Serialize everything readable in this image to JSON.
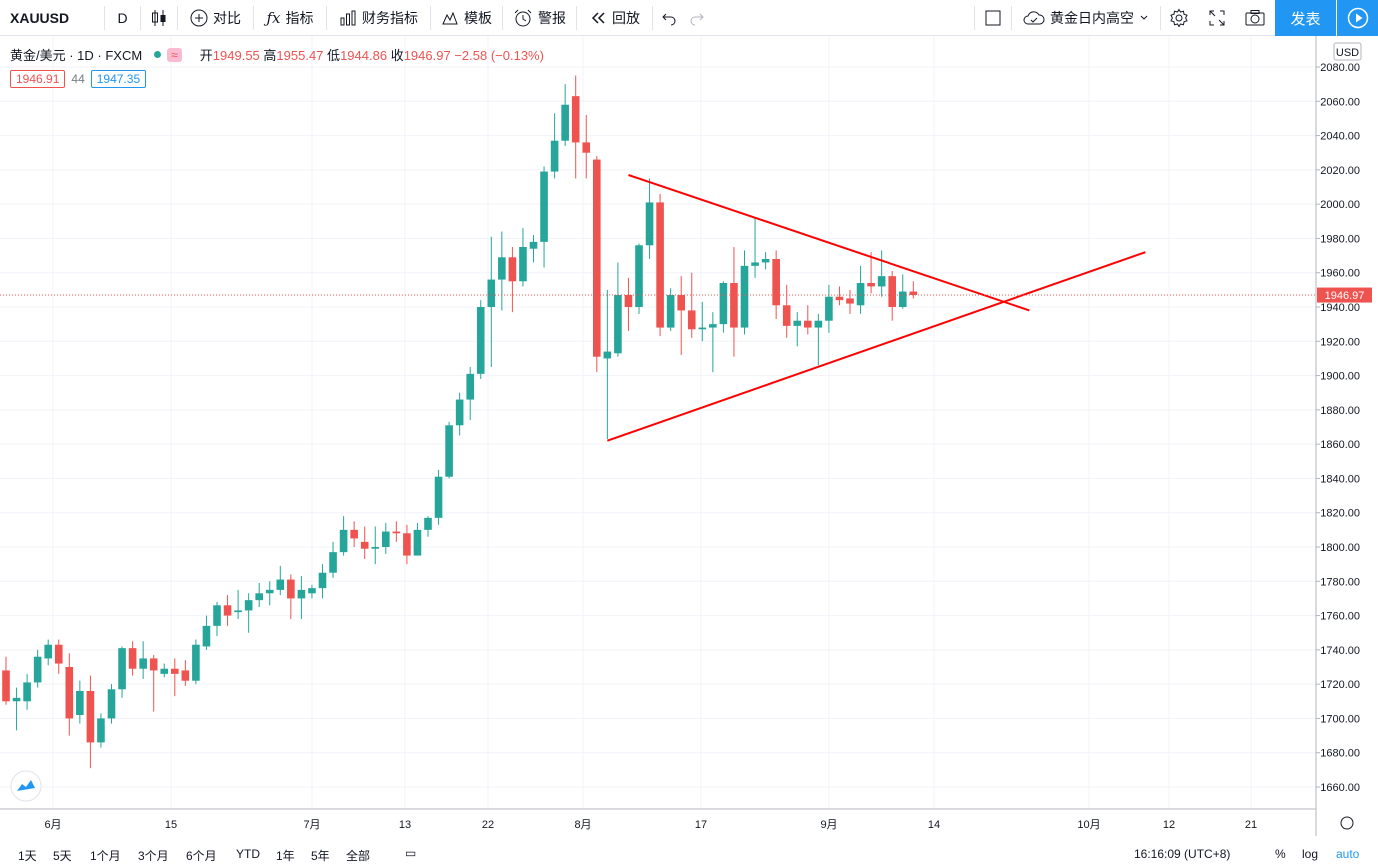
{
  "toolbar": {
    "symbol": "XAUUSD",
    "interval": "D",
    "compare": "对比",
    "indicators": "指标",
    "financials": "财务指标",
    "templates": "模板",
    "alert": "警报",
    "replay": "回放",
    "layout_name": "黄金日内高空",
    "publish": "发表"
  },
  "legend": {
    "title": "黄金/美元 · 1D · FXCM",
    "open_label": "开",
    "open": "1949.55",
    "high_label": "高",
    "high": "1955.47",
    "low_label": "低",
    "low": "1944.86",
    "close_label": "收",
    "close": "1946.97",
    "change": "−2.58 (−0.13%)",
    "bid": "1946.91",
    "spread": "44",
    "ask": "1947.35"
  },
  "price_axis": {
    "currency": "USD",
    "current_price": "1946.97",
    "ticks": [
      "2080.00",
      "2060.00",
      "2040.00",
      "2020.00",
      "2000.00",
      "1980.00",
      "1960.00",
      "1940.00",
      "1920.00",
      "1900.00",
      "1880.00",
      "1860.00",
      "1840.00",
      "1820.00",
      "1800.00",
      "1780.00",
      "1760.00",
      "1740.00",
      "1720.00",
      "1700.00",
      "1680.00",
      "1660.00"
    ]
  },
  "time_axis": {
    "labels": [
      "6月",
      "15",
      "7月",
      "13",
      "22",
      "8月",
      "17",
      "9月",
      "14",
      "10月",
      "12",
      "21"
    ]
  },
  "bottom": {
    "ranges": [
      "1天",
      "5天",
      "1个月",
      "3个月",
      "6个月",
      "YTD",
      "1年",
      "5年",
      "全部"
    ],
    "clock": "16:16:09 (UTC+8)",
    "percent": "%",
    "log": "log",
    "auto": "auto"
  },
  "colors": {
    "up": "#26a69a",
    "down": "#ef5350",
    "accent": "#2196f3",
    "drawing": "#ff0000"
  },
  "chart_data": {
    "type": "candlestick",
    "symbol": "XAUUSD",
    "interval": "1D",
    "ylim": [
      1650,
      2090
    ],
    "candles": [
      {
        "o": 1728,
        "h": 1736,
        "l": 1708,
        "c": 1710
      },
      {
        "o": 1710,
        "h": 1718,
        "l": 1693,
        "c": 1712
      },
      {
        "o": 1710,
        "h": 1726,
        "l": 1705,
        "c": 1721
      },
      {
        "o": 1721,
        "h": 1740,
        "l": 1718,
        "c": 1736
      },
      {
        "o": 1735,
        "h": 1746,
        "l": 1731,
        "c": 1743
      },
      {
        "o": 1743,
        "h": 1746,
        "l": 1726,
        "c": 1732
      },
      {
        "o": 1730,
        "h": 1738,
        "l": 1690,
        "c": 1700
      },
      {
        "o": 1702,
        "h": 1722,
        "l": 1697,
        "c": 1716
      },
      {
        "o": 1716,
        "h": 1725,
        "l": 1671,
        "c": 1686
      },
      {
        "o": 1686,
        "h": 1703,
        "l": 1683,
        "c": 1700
      },
      {
        "o": 1700,
        "h": 1720,
        "l": 1697,
        "c": 1717
      },
      {
        "o": 1717,
        "h": 1742,
        "l": 1712,
        "c": 1741
      },
      {
        "o": 1741,
        "h": 1745,
        "l": 1725,
        "c": 1729
      },
      {
        "o": 1729,
        "h": 1745,
        "l": 1723,
        "c": 1735
      },
      {
        "o": 1735,
        "h": 1737,
        "l": 1704,
        "c": 1728
      },
      {
        "o": 1726,
        "h": 1732,
        "l": 1724,
        "c": 1729
      },
      {
        "o": 1729,
        "h": 1735,
        "l": 1713,
        "c": 1726
      },
      {
        "o": 1728,
        "h": 1734,
        "l": 1719,
        "c": 1722
      },
      {
        "o": 1722,
        "h": 1746,
        "l": 1720,
        "c": 1743
      },
      {
        "o": 1742,
        "h": 1760,
        "l": 1740,
        "c": 1754
      },
      {
        "o": 1754,
        "h": 1768,
        "l": 1748,
        "c": 1766
      },
      {
        "o": 1766,
        "h": 1772,
        "l": 1754,
        "c": 1760
      },
      {
        "o": 1762,
        "h": 1775,
        "l": 1758,
        "c": 1763
      },
      {
        "o": 1763,
        "h": 1773,
        "l": 1750,
        "c": 1769
      },
      {
        "o": 1769,
        "h": 1779,
        "l": 1765,
        "c": 1773
      },
      {
        "o": 1773,
        "h": 1780,
        "l": 1766,
        "c": 1775
      },
      {
        "o": 1775,
        "h": 1789,
        "l": 1772,
        "c": 1781
      },
      {
        "o": 1781,
        "h": 1784,
        "l": 1758,
        "c": 1770
      },
      {
        "o": 1770,
        "h": 1783,
        "l": 1758,
        "c": 1775
      },
      {
        "o": 1773,
        "h": 1778,
        "l": 1770,
        "c": 1776
      },
      {
        "o": 1776,
        "h": 1790,
        "l": 1770,
        "c": 1785
      },
      {
        "o": 1785,
        "h": 1803,
        "l": 1782,
        "c": 1797
      },
      {
        "o": 1797,
        "h": 1818,
        "l": 1795,
        "c": 1810
      },
      {
        "o": 1810,
        "h": 1815,
        "l": 1800,
        "c": 1805
      },
      {
        "o": 1803,
        "h": 1812,
        "l": 1793,
        "c": 1799
      },
      {
        "o": 1799,
        "h": 1812,
        "l": 1790,
        "c": 1800
      },
      {
        "o": 1800,
        "h": 1814,
        "l": 1796,
        "c": 1809
      },
      {
        "o": 1809,
        "h": 1815,
        "l": 1803,
        "c": 1808
      },
      {
        "o": 1808,
        "h": 1813,
        "l": 1790,
        "c": 1795
      },
      {
        "o": 1795,
        "h": 1814,
        "l": 1795,
        "c": 1810
      },
      {
        "o": 1810,
        "h": 1818,
        "l": 1806,
        "c": 1817
      },
      {
        "o": 1817,
        "h": 1845,
        "l": 1813,
        "c": 1841
      },
      {
        "o": 1841,
        "h": 1873,
        "l": 1840,
        "c": 1871
      },
      {
        "o": 1871,
        "h": 1890,
        "l": 1865,
        "c": 1886
      },
      {
        "o": 1886,
        "h": 1905,
        "l": 1874,
        "c": 1901
      },
      {
        "o": 1901,
        "h": 1944,
        "l": 1898,
        "c": 1940
      },
      {
        "o": 1940,
        "h": 1981,
        "l": 1905,
        "c": 1956
      },
      {
        "o": 1956,
        "h": 1984,
        "l": 1938,
        "c": 1969
      },
      {
        "o": 1969,
        "h": 1975,
        "l": 1937,
        "c": 1955
      },
      {
        "o": 1955,
        "h": 1986,
        "l": 1952,
        "c": 1975
      },
      {
        "o": 1974,
        "h": 1982,
        "l": 1966,
        "c": 1978
      },
      {
        "o": 1978,
        "h": 2022,
        "l": 1963,
        "c": 2019
      },
      {
        "o": 2019,
        "h": 2053,
        "l": 2015,
        "c": 2037
      },
      {
        "o": 2037,
        "h": 2070,
        "l": 2034,
        "c": 2058
      },
      {
        "o": 2063,
        "h": 2075,
        "l": 2015,
        "c": 2036
      },
      {
        "o": 2036,
        "h": 2052,
        "l": 2015,
        "c": 2030
      },
      {
        "o": 2026,
        "h": 2028,
        "l": 1902,
        "c": 1911
      },
      {
        "o": 1910,
        "h": 1950,
        "l": 1863,
        "c": 1914
      },
      {
        "o": 1913,
        "h": 1966,
        "l": 1911,
        "c": 1947
      },
      {
        "o": 1947,
        "h": 1957,
        "l": 1926,
        "c": 1940
      },
      {
        "o": 1940,
        "h": 1977,
        "l": 1936,
        "c": 1976
      },
      {
        "o": 1976,
        "h": 2015,
        "l": 1968,
        "c": 2001
      },
      {
        "o": 2001,
        "h": 2006,
        "l": 1923,
        "c": 1928
      },
      {
        "o": 1928,
        "h": 1951,
        "l": 1926,
        "c": 1947
      },
      {
        "o": 1947,
        "h": 1958,
        "l": 1912,
        "c": 1938
      },
      {
        "o": 1938,
        "h": 1960,
        "l": 1922,
        "c": 1927
      },
      {
        "o": 1927,
        "h": 1943,
        "l": 1920,
        "c": 1928
      },
      {
        "o": 1928,
        "h": 1937,
        "l": 1902,
        "c": 1930
      },
      {
        "o": 1930,
        "h": 1955,
        "l": 1925,
        "c": 1954
      },
      {
        "o": 1954,
        "h": 1975,
        "l": 1911,
        "c": 1928
      },
      {
        "o": 1928,
        "h": 1973,
        "l": 1924,
        "c": 1964
      },
      {
        "o": 1964,
        "h": 1992,
        "l": 1957,
        "c": 1966
      },
      {
        "o": 1966,
        "h": 1972,
        "l": 1962,
        "c": 1968
      },
      {
        "o": 1968,
        "h": 1973,
        "l": 1933,
        "c": 1941
      },
      {
        "o": 1941,
        "h": 1953,
        "l": 1922,
        "c": 1929
      },
      {
        "o": 1929,
        "h": 1937,
        "l": 1917,
        "c": 1932
      },
      {
        "o": 1932,
        "h": 1941,
        "l": 1924,
        "c": 1928
      },
      {
        "o": 1928,
        "h": 1936,
        "l": 1906,
        "c": 1932
      },
      {
        "o": 1932,
        "h": 1953,
        "l": 1925,
        "c": 1946
      },
      {
        "o": 1946,
        "h": 1952,
        "l": 1941,
        "c": 1944
      },
      {
        "o": 1945,
        "h": 1950,
        "l": 1936,
        "c": 1942
      },
      {
        "o": 1941,
        "h": 1964,
        "l": 1936,
        "c": 1954
      },
      {
        "o": 1954,
        "h": 1972,
        "l": 1948,
        "c": 1952
      },
      {
        "o": 1952,
        "h": 1973,
        "l": 1946,
        "c": 1958
      },
      {
        "o": 1958,
        "h": 1961,
        "l": 1932,
        "c": 1940
      },
      {
        "o": 1940,
        "h": 1959,
        "l": 1939,
        "c": 1949
      },
      {
        "o": 1949,
        "h": 1955,
        "l": 1945,
        "c": 1947
      }
    ],
    "trendlines": [
      {
        "label": "upper",
        "from": {
          "bar": 59,
          "price": 2017
        },
        "to": {
          "bar": 97,
          "price": 1938
        }
      },
      {
        "label": "lower",
        "from": {
          "bar": 57,
          "price": 1862
        },
        "to": {
          "bar": 108,
          "price": 1972
        }
      }
    ],
    "current_price_line": 1946.97,
    "grid": true
  }
}
